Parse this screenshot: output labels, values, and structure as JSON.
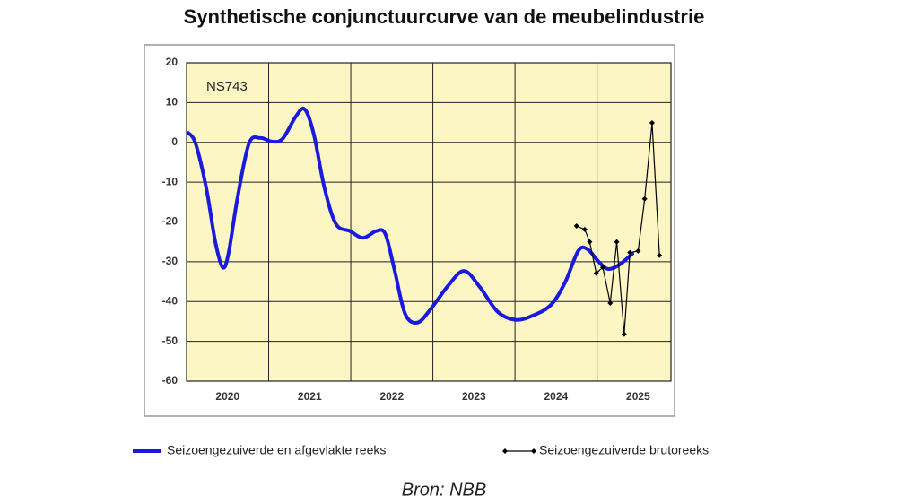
{
  "chart_data": {
    "type": "line",
    "title": "Synthetische conjunctuurcurve van de meubelindustrie",
    "annotation": "NS743",
    "source": "Bron: NBB",
    "xlim": [
      2020,
      2025.9
    ],
    "ylim": [
      -60,
      20
    ],
    "yticks": [
      20,
      10,
      0,
      -10,
      -20,
      -30,
      -40,
      -50,
      -60
    ],
    "xticks": [
      {
        "value": 2020.5,
        "label": "2020"
      },
      {
        "value": 2021.5,
        "label": "2021"
      },
      {
        "value": 2022.5,
        "label": "2022"
      },
      {
        "value": 2023.5,
        "label": "2023"
      },
      {
        "value": 2024.5,
        "label": "2024"
      },
      {
        "value": 2025.5,
        "label": "2025"
      }
    ],
    "xgrid": [
      2020,
      2021,
      2022,
      2023,
      2024,
      2025
    ],
    "grid": true,
    "legend": "bottom",
    "series": [
      {
        "name": "Seizoengezuiverde en afgevlakte reeks",
        "color": "#1a1adc",
        "smooth": true,
        "x": [
          2020.02,
          2020.11,
          2020.24,
          2020.35,
          2020.44,
          2020.51,
          2020.62,
          2020.76,
          2020.9,
          2021.04,
          2021.17,
          2021.33,
          2021.44,
          2021.55,
          2021.68,
          2021.82,
          2021.99,
          2022.15,
          2022.31,
          2022.42,
          2022.53,
          2022.66,
          2022.81,
          2022.97,
          2023.19,
          2023.38,
          2023.57,
          2023.79,
          2024.01,
          2024.22,
          2024.44,
          2024.61,
          2024.77,
          2024.88,
          2025.02,
          2025.13,
          2025.26,
          2025.43
        ],
        "values": [
          2.4,
          -0.3,
          -11.5,
          -25,
          -31.4,
          -28,
          -14,
          -0.3,
          1.1,
          0.2,
          0.9,
          6.5,
          8.3,
          2,
          -11.5,
          -20.5,
          -22.3,
          -24,
          -22.3,
          -23,
          -31.8,
          -43,
          -45.3,
          -42,
          -35.9,
          -32.3,
          -36.3,
          -42.6,
          -44.6,
          -43.5,
          -40.8,
          -35.2,
          -27.3,
          -26.8,
          -30,
          -31.8,
          -30.9,
          -28
        ]
      },
      {
        "name": "Seizoengezuiverde brutoreeks",
        "color": "#000000",
        "markers": true,
        "x": [
          2024.75,
          2024.85,
          2024.91,
          2024.99,
          2025.07,
          2025.16,
          2025.24,
          2025.33,
          2025.4,
          2025.5,
          2025.58,
          2025.67,
          2025.76
        ],
        "values": [
          -21,
          -21.9,
          -25,
          -32.9,
          -31.4,
          -40.4,
          -25,
          -48.2,
          -27.7,
          -27.3,
          -14.2,
          4.9,
          -28.4
        ]
      }
    ]
  }
}
